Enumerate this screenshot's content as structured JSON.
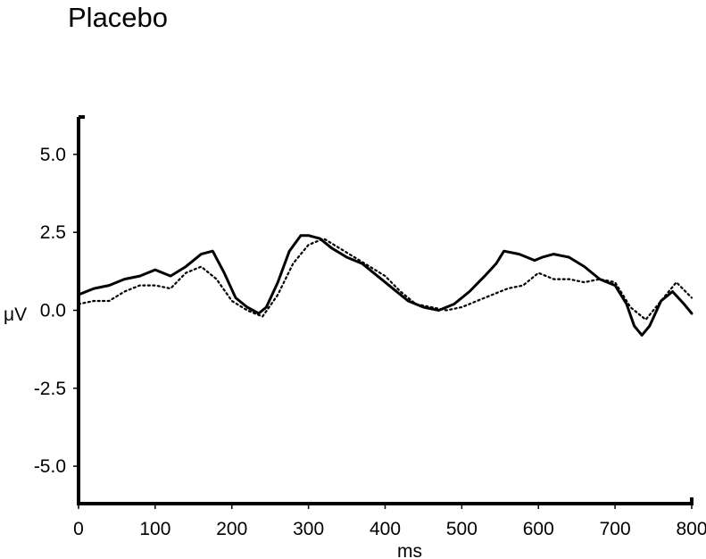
{
  "chart_data": {
    "type": "line",
    "title": "Placebo",
    "xlabel": "ms",
    "ylabel": "μV",
    "xlim": [
      0,
      800
    ],
    "ylim": [
      -6.2,
      6.2
    ],
    "x_ticks": [
      0,
      100,
      200,
      300,
      400,
      500,
      600,
      700,
      800
    ],
    "y_ticks": [
      5.0,
      2.5,
      0.0,
      -2.5,
      -5.0
    ],
    "y_tick_labels": [
      "5.0",
      "2.5",
      "0.0",
      "-2.5",
      "-5.0"
    ],
    "grid": false,
    "legend": "none",
    "series": [
      {
        "style": "solid",
        "color": "#000000",
        "x": [
          0,
          20,
          40,
          60,
          80,
          100,
          120,
          140,
          160,
          175,
          190,
          205,
          220,
          235,
          245,
          260,
          275,
          290,
          300,
          315,
          330,
          350,
          370,
          390,
          410,
          430,
          450,
          470,
          490,
          510,
          530,
          545,
          555,
          575,
          595,
          605,
          620,
          640,
          660,
          680,
          700,
          715,
          725,
          735,
          745,
          760,
          775,
          790,
          800
        ],
        "y": [
          0.5,
          0.7,
          0.8,
          1.0,
          1.1,
          1.3,
          1.1,
          1.4,
          1.8,
          1.9,
          1.2,
          0.4,
          0.1,
          -0.1,
          0.1,
          0.9,
          1.9,
          2.4,
          2.4,
          2.3,
          2.0,
          1.7,
          1.5,
          1.1,
          0.7,
          0.3,
          0.1,
          0.0,
          0.2,
          0.6,
          1.1,
          1.5,
          1.9,
          1.8,
          1.6,
          1.7,
          1.8,
          1.7,
          1.4,
          1.0,
          0.8,
          0.2,
          -0.5,
          -0.8,
          -0.5,
          0.3,
          0.6,
          0.2,
          -0.1
        ]
      },
      {
        "style": "dotted",
        "color": "#000000",
        "x": [
          0,
          20,
          40,
          60,
          80,
          100,
          120,
          140,
          160,
          180,
          200,
          220,
          240,
          260,
          280,
          300,
          320,
          340,
          360,
          380,
          400,
          420,
          440,
          460,
          480,
          500,
          520,
          540,
          560,
          580,
          600,
          620,
          640,
          660,
          680,
          700,
          720,
          740,
          760,
          780,
          800
        ],
        "y": [
          0.2,
          0.3,
          0.3,
          0.6,
          0.8,
          0.8,
          0.7,
          1.2,
          1.4,
          1.0,
          0.3,
          0.0,
          -0.2,
          0.5,
          1.5,
          2.1,
          2.3,
          2.0,
          1.7,
          1.4,
          1.1,
          0.6,
          0.2,
          0.1,
          0.0,
          0.1,
          0.3,
          0.5,
          0.7,
          0.8,
          1.2,
          1.0,
          1.0,
          0.9,
          1.0,
          0.9,
          0.1,
          -0.3,
          0.3,
          0.9,
          0.4
        ]
      }
    ]
  }
}
